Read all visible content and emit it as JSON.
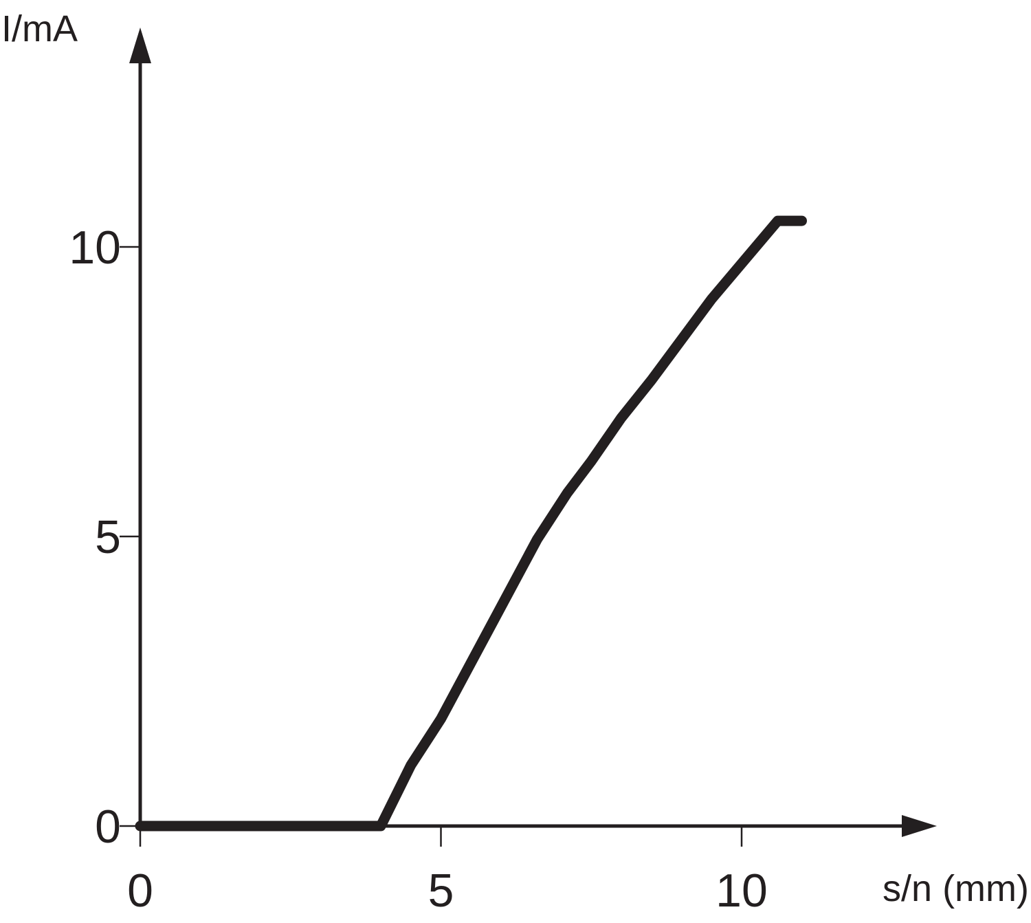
{
  "chart_data": {
    "type": "line",
    "xlabel": "s/n (mm)",
    "ylabel": "I/mA",
    "xlim": [
      0,
      13
    ],
    "ylim": [
      0,
      13
    ],
    "x_ticks": [
      "0",
      "5",
      "10"
    ],
    "y_ticks": [
      "0",
      "5",
      "10"
    ],
    "grid": false,
    "line_color": "#231f20",
    "series": [
      {
        "x": [
          0,
          4.0,
          4.5,
          5.0,
          5.8,
          6.6,
          7.1,
          7.5,
          8.0,
          8.5,
          9.5,
          10.6,
          11.0
        ],
        "y": [
          0,
          0,
          1.05,
          1.85,
          3.4,
          4.95,
          5.75,
          6.3,
          7.05,
          7.7,
          9.1,
          10.45,
          10.45
        ]
      }
    ]
  }
}
